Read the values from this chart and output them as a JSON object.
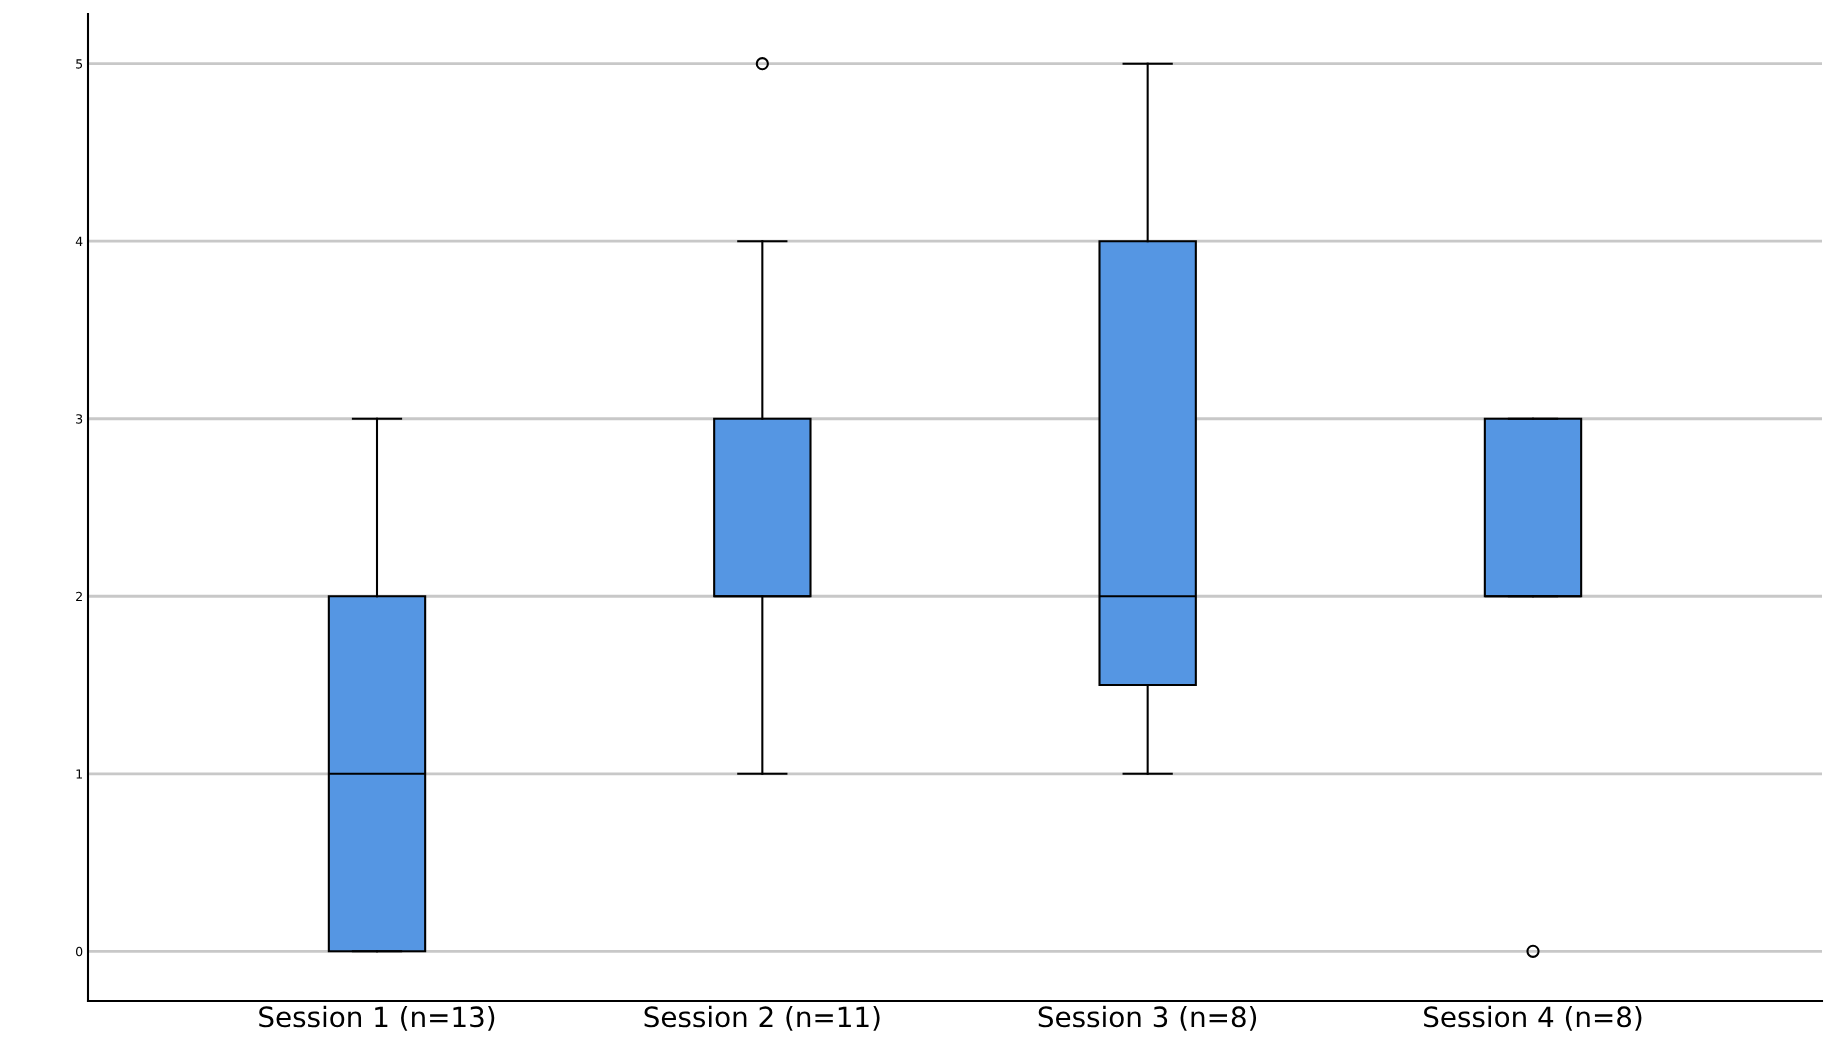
{
  "chart_data": {
    "type": "box",
    "categories": [
      "Session 1 (n=13)",
      "Session 2 (n=11)",
      "Session 3 (n=8)",
      "Session 4 (n=8)"
    ],
    "boxes": [
      {
        "low": 0,
        "q1": 0,
        "median": 1,
        "q3": 2,
        "high": 3
      },
      {
        "low": 1,
        "q1": 2,
        "median": 2,
        "q3": 3,
        "high": 4,
        "outliers": [
          5
        ]
      },
      {
        "low": 1,
        "q1": 1.5,
        "median": 2,
        "q3": 4,
        "high": 5
      },
      {
        "low": 2,
        "q1": 2,
        "median": 2,
        "q3": 3,
        "high": 3,
        "outliers": [
          0
        ]
      }
    ],
    "color": "#5596e3",
    "ylim": [
      -0.28,
      5.28
    ],
    "yticks": [
      0,
      1,
      2,
      3,
      4,
      5
    ],
    "grid": "y"
  }
}
